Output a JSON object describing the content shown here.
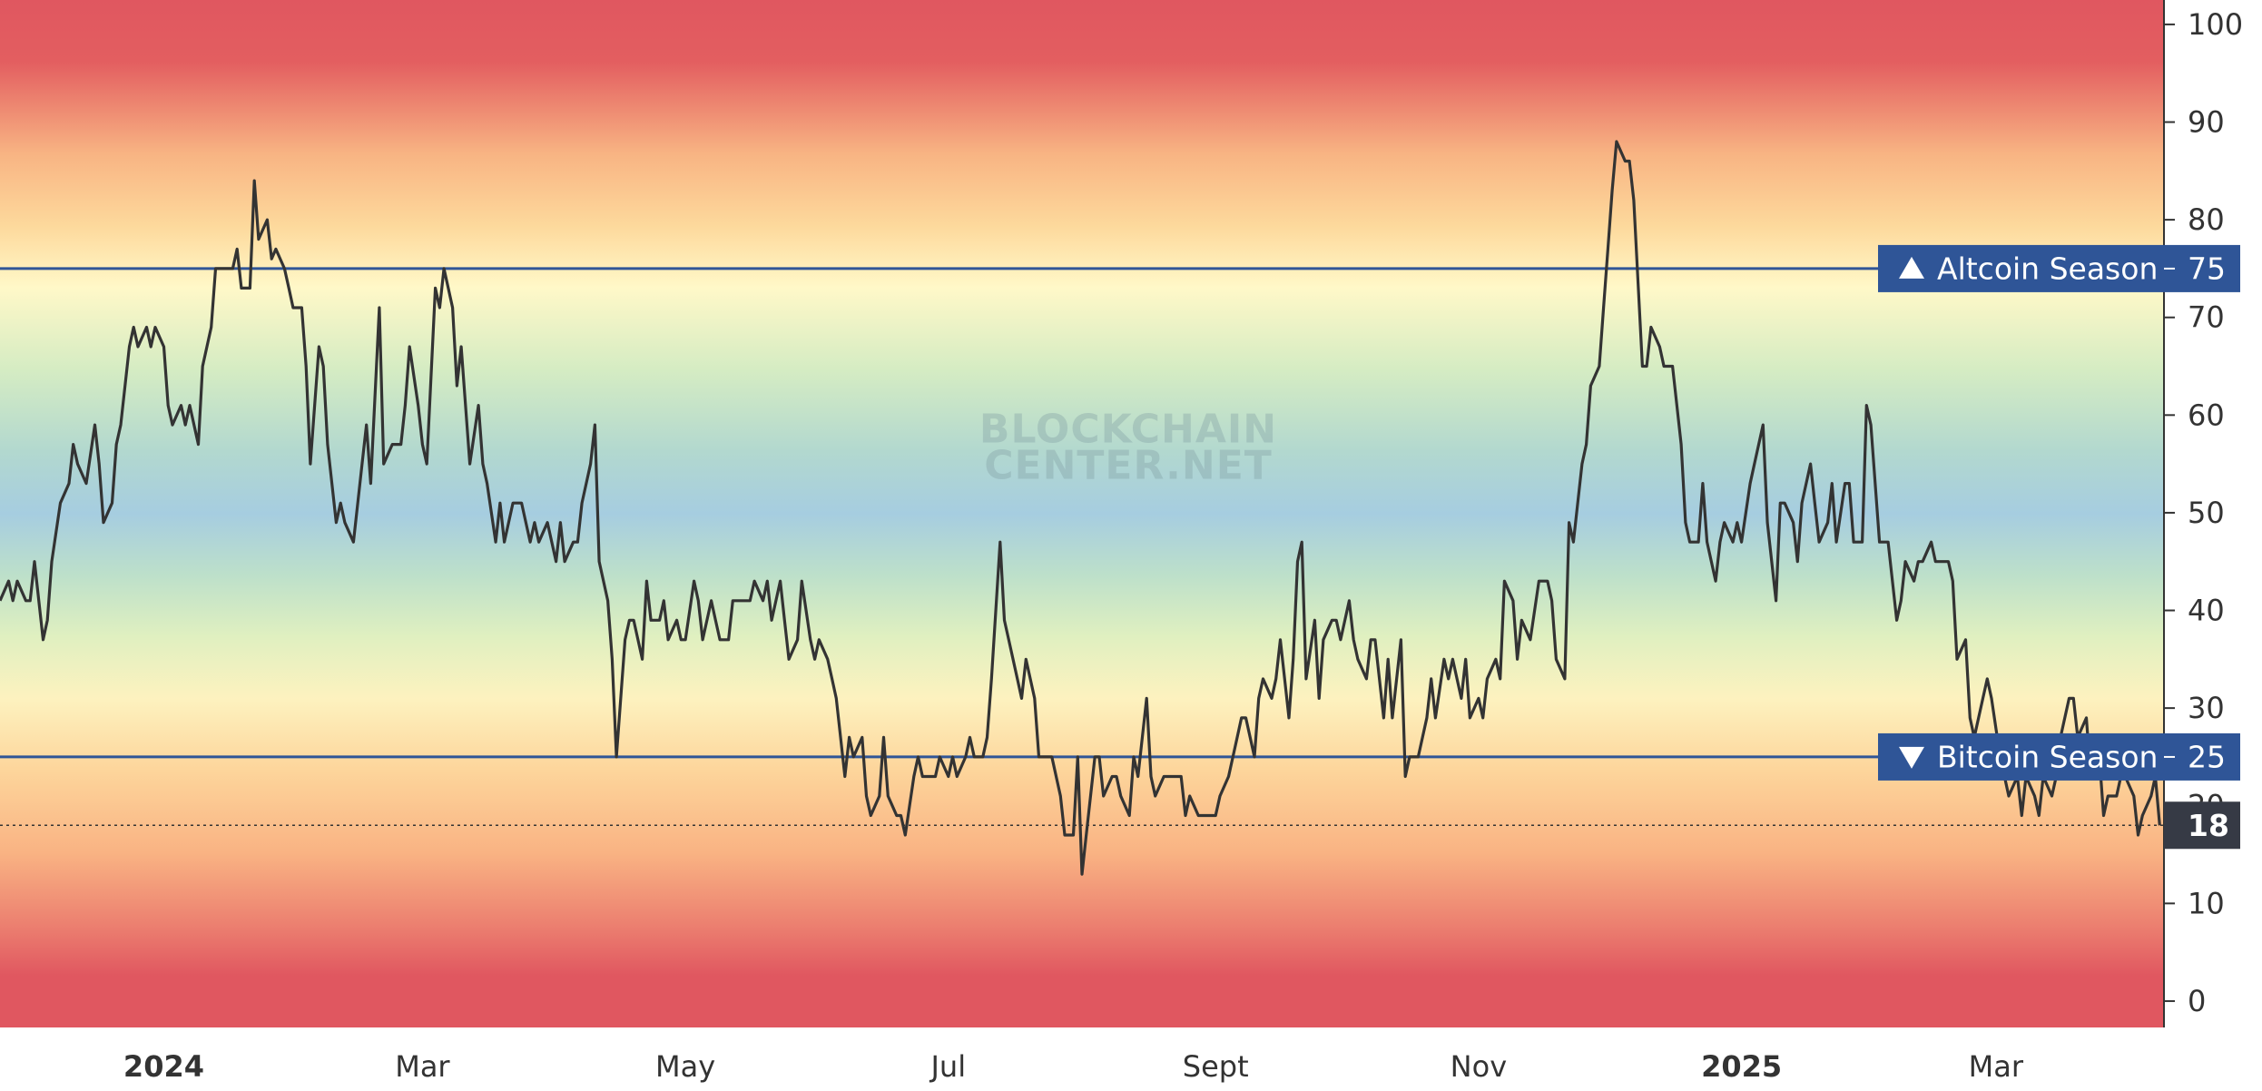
{
  "chart_data": {
    "type": "line",
    "color": "#333333",
    "x": [
      -38,
      -36,
      -35,
      -34,
      -32,
      -31,
      -30,
      -28,
      -27,
      -26,
      -24,
      -22,
      -21,
      -20,
      -18,
      -16,
      -15,
      -14,
      -12,
      -11,
      -10,
      -8,
      -7,
      -6,
      -4,
      -3,
      -2,
      0,
      1,
      2,
      4,
      5,
      6,
      8,
      9,
      11,
      12,
      14,
      16,
      17,
      18,
      20,
      21,
      22,
      24,
      25,
      26,
      28,
      29,
      30,
      32,
      33,
      34,
      36,
      37,
      38,
      40,
      41,
      42,
      44,
      46,
      47,
      48,
      50,
      51,
      53,
      55,
      56,
      57,
      59,
      60,
      61,
      63,
      64,
      65,
      67,
      68,
      69,
      71,
      73,
      74,
      75,
      77,
      78,
      79,
      81,
      83,
      85,
      86,
      87,
      89,
      91,
      92,
      93,
      95,
      96,
      97,
      99,
      100,
      101,
      103,
      104,
      105,
      107,
      108,
      109,
      111,
      112,
      113,
      115,
      116,
      117,
      119,
      120,
      121,
      123,
      124,
      125,
      127,
      128,
      129,
      131,
      132,
      135,
      136,
      137,
      139,
      140,
      141,
      143,
      144,
      145,
      147,
      148,
      150,
      151,
      152,
      154,
      155,
      156,
      158,
      159,
      160,
      162,
      163,
      164,
      166,
      167,
      168,
      170,
      171,
      172,
      174,
      175,
      176,
      178,
      179,
      180,
      182,
      183,
      184,
      186,
      187,
      188,
      190,
      191,
      192,
      194,
      195,
      196,
      198,
      199,
      200,
      202,
      203,
      206,
      208,
      209,
      211,
      212,
      213,
      214,
      216,
      217,
      218,
      220,
      221,
      222,
      224,
      225,
      226,
      228,
      229,
      230,
      232,
      233,
      236,
      237,
      238,
      240,
      242,
      244,
      245,
      247,
      249,
      250,
      251,
      253,
      254,
      255,
      257,
      258,
      259,
      261,
      262,
      263,
      264,
      265,
      267,
      268,
      269,
      271,
      272,
      273,
      275,
      276,
      277,
      279,
      280,
      281,
      283,
      284,
      285,
      287,
      288,
      289,
      291,
      293,
      294,
      295,
      297,
      298,
      299,
      301,
      302,
      303,
      305,
      306,
      307,
      309,
      310,
      311,
      313,
      314,
      315,
      317,
      319,
      321,
      322,
      323,
      325,
      326,
      327,
      329,
      330,
      331,
      333,
      334,
      335,
      336,
      337,
      339,
      340,
      341,
      343,
      344,
      345,
      347,
      348,
      350,
      352,
      353,
      354,
      356,
      357,
      358,
      360,
      361,
      362,
      364,
      365,
      366,
      368,
      369,
      371,
      372,
      374,
      375,
      376,
      378,
      379,
      380,
      382,
      383,
      384,
      386,
      387,
      388,
      390,
      391,
      392,
      394,
      395,
      396,
      398,
      399,
      400,
      402,
      403,
      404,
      406,
      407,
      408,
      410,
      411,
      414,
      415,
      416,
      418,
      419,
      420,
      422,
      423,
      424,
      426,
      427,
      428,
      430,
      431,
      432,
      434,
      435,
      436,
      438,
      439,
      440,
      442,
      443,
      444,
      446,
      447,
      449,
      450,
      451,
      453,
      454,
      455,
      457,
      458,
      459,
      461,
      462,
      463
    ],
    "values": [
      41,
      43,
      41,
      43,
      41,
      41,
      45,
      37,
      39,
      45,
      51,
      53,
      57,
      55,
      53,
      59,
      55,
      49,
      51,
      57,
      59,
      67,
      69,
      67,
      69,
      67,
      69,
      67,
      61,
      59,
      61,
      59,
      61,
      57,
      65,
      69,
      75,
      75,
      75,
      77,
      73,
      73,
      84,
      78,
      80,
      76,
      77,
      75,
      73,
      71,
      71,
      65,
      55,
      67,
      65,
      57,
      49,
      51,
      49,
      47,
      55,
      59,
      53,
      71,
      55,
      57,
      57,
      61,
      67,
      61,
      57,
      55,
      73,
      71,
      75,
      71,
      63,
      67,
      55,
      61,
      55,
      53,
      47,
      51,
      47,
      51,
      51,
      47,
      49,
      47,
      49,
      45,
      49,
      45,
      47,
      47,
      51,
      55,
      59,
      45,
      41,
      35,
      25,
      37,
      39,
      39,
      35,
      43,
      39,
      39,
      41,
      37,
      39,
      37,
      37,
      43,
      41,
      37,
      41,
      39,
      37,
      37,
      41,
      41,
      41,
      43,
      41,
      43,
      39,
      43,
      39,
      35,
      37,
      43,
      37,
      35,
      37,
      35,
      33,
      31,
      23,
      27,
      25,
      27,
      21,
      19,
      21,
      27,
      21,
      19,
      19,
      17,
      23,
      25,
      23,
      23,
      23,
      25,
      23,
      25,
      23,
      25,
      27,
      25,
      25,
      27,
      33,
      47,
      39,
      37,
      33,
      31,
      35,
      31,
      25,
      25,
      21,
      17,
      17,
      25,
      13,
      17,
      25,
      25,
      21,
      23,
      23,
      21,
      19,
      25,
      23,
      31,
      23,
      21,
      23,
      23,
      23,
      19,
      21,
      19,
      19,
      19,
      21,
      23,
      27,
      29,
      29,
      25,
      31,
      33,
      31,
      33,
      37,
      29,
      35,
      45,
      47,
      33,
      39,
      31,
      37,
      39,
      39,
      37,
      41,
      37,
      35,
      33,
      37,
      37,
      29,
      35,
      29,
      37,
      23,
      25,
      25,
      29,
      33,
      29,
      35,
      33,
      35,
      31,
      35,
      29,
      31,
      29,
      33,
      35,
      33,
      43,
      41,
      35,
      39,
      37,
      43,
      43,
      41,
      35,
      33,
      49,
      47,
      55,
      57,
      63,
      65,
      71,
      77,
      83,
      88,
      86,
      86,
      82,
      65,
      65,
      69,
      67,
      65,
      65,
      57,
      49,
      47,
      47,
      53,
      47,
      43,
      47,
      49,
      47,
      49,
      47,
      53,
      55,
      59,
      49,
      41,
      51,
      51,
      49,
      45,
      51,
      55,
      51,
      47,
      49,
      53,
      47,
      53,
      53,
      47,
      47,
      61,
      59,
      47,
      47,
      47,
      39,
      41,
      45,
      43,
      45,
      45,
      47,
      45,
      45,
      43,
      35,
      37,
      29,
      27,
      31,
      33,
      31,
      25,
      23,
      21,
      23,
      19,
      23,
      21,
      19,
      23,
      21,
      23,
      27,
      31,
      31,
      27,
      29,
      23,
      25,
      19,
      21,
      21,
      23,
      23,
      21,
      17,
      19,
      21,
      23,
      18
    ],
    "xlim": [
      -38,
      464
    ],
    "xticks": [
      {
        "value": 0,
        "label": "2024"
      },
      {
        "value": 60,
        "label": "Mar"
      },
      {
        "value": 121,
        "label": "May"
      },
      {
        "value": 182,
        "label": "Jul"
      },
      {
        "value": 244,
        "label": "Sept"
      },
      {
        "value": 305,
        "label": "Nov"
      },
      {
        "value": 366,
        "label": "2025"
      },
      {
        "value": 425,
        "label": "Mar"
      }
    ],
    "ylim": [
      -2.7,
      102.5
    ],
    "yticks": [
      0,
      10,
      20,
      30,
      40,
      50,
      60,
      70,
      80,
      90,
      100
    ],
    "reference_lines": [
      {
        "label": "Altcoin Season",
        "value": 75,
        "color": "#2f5597"
      },
      {
        "label": "Bitcoin Season",
        "value": 25,
        "color": "#2f5597"
      }
    ],
    "current_value": 18,
    "watermark": [
      "BLOCKCHAIN",
      "CENTER.NET"
    ]
  }
}
